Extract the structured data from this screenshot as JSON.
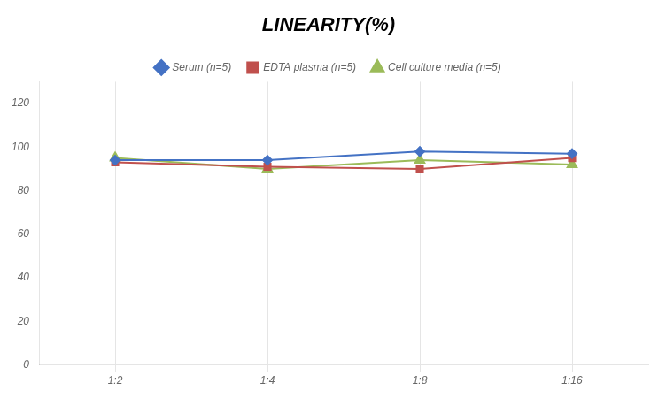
{
  "chart_data": {
    "type": "line",
    "title": "LINEARITY(%)",
    "categories": [
      "1:2",
      "1:4",
      "1:8",
      "1:16"
    ],
    "series": [
      {
        "name": "Serum (n=5)",
        "color": "#4472C4",
        "marker": "diamond",
        "values": [
          94,
          94,
          98,
          97
        ]
      },
      {
        "name": "EDTA plasma (n=5)",
        "color": "#C0504D",
        "marker": "square",
        "values": [
          93,
          91,
          90,
          95
        ]
      },
      {
        "name": "Cell culture media (n=5)",
        "color": "#9BBB59",
        "marker": "triangle",
        "values": [
          95,
          90,
          94,
          92
        ]
      }
    ],
    "ylim": [
      0,
      130
    ],
    "yticks": [
      0,
      20,
      40,
      60,
      80,
      100,
      120
    ],
    "grid": "x",
    "legend": "top"
  }
}
